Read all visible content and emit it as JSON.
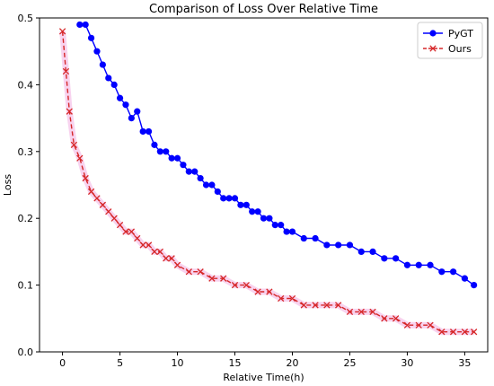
{
  "chart_data": {
    "type": "line",
    "title": "Comparison of Loss Over Relative Time",
    "xlabel": "Relative Time(h)",
    "ylabel": "Loss",
    "xlim": [
      -2,
      37
    ],
    "ylim": [
      0.0,
      0.5
    ],
    "xticks": [
      0,
      5,
      10,
      15,
      20,
      25,
      30,
      35
    ],
    "yticks": [
      0.0,
      0.1,
      0.2,
      0.3,
      0.4,
      0.5
    ],
    "ytick_labels": [
      "0.0",
      "0.1",
      "0.2",
      "0.3",
      "0.4",
      "0.5"
    ],
    "grid": false,
    "legend": "top-right",
    "series": [
      {
        "name": "PyGT",
        "color": "#0000ff",
        "marker": "circle",
        "linestyle": "solid",
        "x": [
          1.5,
          2.0,
          2.5,
          3.0,
          3.5,
          4.0,
          4.5,
          5.0,
          5.5,
          6.0,
          6.5,
          7.0,
          7.5,
          8.0,
          8.5,
          9.0,
          9.5,
          10.0,
          10.5,
          11.0,
          11.5,
          12.0,
          12.5,
          13.0,
          13.5,
          14.0,
          14.5,
          15.0,
          15.5,
          16.0,
          16.5,
          17.0,
          17.5,
          18.0,
          18.5,
          19.0,
          19.5,
          20.0,
          21.0,
          22.0,
          23.0,
          24.0,
          25.0,
          26.0,
          27.0,
          28.0,
          29.0,
          30.0,
          31.0,
          32.0,
          33.0,
          34.0,
          35.0,
          35.8
        ],
        "values": [
          0.49,
          0.49,
          0.47,
          0.45,
          0.43,
          0.41,
          0.4,
          0.38,
          0.37,
          0.35,
          0.36,
          0.33,
          0.33,
          0.31,
          0.3,
          0.3,
          0.29,
          0.29,
          0.28,
          0.27,
          0.27,
          0.26,
          0.25,
          0.25,
          0.24,
          0.23,
          0.23,
          0.23,
          0.22,
          0.22,
          0.21,
          0.21,
          0.2,
          0.2,
          0.19,
          0.19,
          0.18,
          0.18,
          0.17,
          0.17,
          0.16,
          0.16,
          0.16,
          0.15,
          0.15,
          0.14,
          0.14,
          0.13,
          0.13,
          0.13,
          0.12,
          0.12,
          0.11,
          0.1
        ]
      },
      {
        "name": "Ours",
        "color": "#d62728",
        "marker": "x",
        "linestyle": "dashed",
        "x": [
          0.0,
          0.3,
          0.6,
          1.0,
          1.5,
          2.0,
          2.5,
          3.0,
          3.5,
          4.0,
          4.5,
          5.0,
          5.5,
          6.0,
          6.5,
          7.0,
          7.5,
          8.0,
          8.5,
          9.0,
          9.5,
          10.0,
          11.0,
          12.0,
          13.0,
          14.0,
          15.0,
          16.0,
          17.0,
          18.0,
          19.0,
          20.0,
          21.0,
          22.0,
          23.0,
          24.0,
          25.0,
          26.0,
          27.0,
          28.0,
          29.0,
          30.0,
          31.0,
          32.0,
          33.0,
          34.0,
          35.0,
          35.8
        ],
        "values": [
          0.48,
          0.42,
          0.36,
          0.31,
          0.29,
          0.26,
          0.24,
          0.23,
          0.22,
          0.21,
          0.2,
          0.19,
          0.18,
          0.18,
          0.17,
          0.16,
          0.16,
          0.15,
          0.15,
          0.14,
          0.14,
          0.13,
          0.12,
          0.12,
          0.11,
          0.11,
          0.1,
          0.1,
          0.09,
          0.09,
          0.08,
          0.08,
          0.07,
          0.07,
          0.07,
          0.07,
          0.06,
          0.06,
          0.06,
          0.05,
          0.05,
          0.04,
          0.04,
          0.04,
          0.03,
          0.03,
          0.03,
          0.03
        ]
      }
    ]
  }
}
